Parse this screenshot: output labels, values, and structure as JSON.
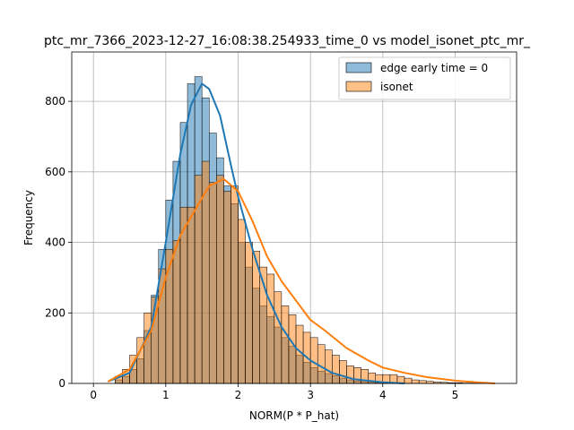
{
  "chart_data": {
    "type": "bar",
    "title": "ptc_mr_7366_2023-12-27_16:08:38.254933_time_0 vs model_isonet_ptc_mr_",
    "xlabel": "NORM(P * P_hat)",
    "ylabel": "Frequency",
    "xlim": [
      -0.3,
      5.85
    ],
    "ylim": [
      0,
      940
    ],
    "xticks": [
      0,
      1,
      2,
      3,
      4,
      5
    ],
    "yticks": [
      0,
      200,
      400,
      600,
      800
    ],
    "grid": true,
    "legend_position": "upper right",
    "bin_width": 0.1,
    "series": [
      {
        "name": "edge early time = 0",
        "color": "#1f77b4",
        "bin_starts": [
          0.3,
          0.4,
          0.5,
          0.6,
          0.7,
          0.8,
          0.9,
          1.0,
          1.1,
          1.2,
          1.3,
          1.4,
          1.5,
          1.6,
          1.7,
          1.8,
          1.9,
          2.0,
          2.1,
          2.2,
          2.3,
          2.4,
          2.5,
          2.6,
          2.7,
          2.8,
          2.9,
          3.0,
          3.1,
          3.2,
          3.3,
          3.4,
          3.5,
          3.6,
          3.7,
          3.8,
          3.9,
          4.0
        ],
        "values": [
          10,
          20,
          40,
          70,
          150,
          250,
          380,
          520,
          630,
          740,
          850,
          870,
          810,
          710,
          640,
          560,
          510,
          400,
          330,
          270,
          220,
          190,
          160,
          130,
          105,
          80,
          60,
          45,
          35,
          28,
          22,
          15,
          10,
          7,
          5,
          3,
          2,
          1
        ],
        "kde_x": [
          0.2,
          0.5,
          0.8,
          1.0,
          1.2,
          1.35,
          1.5,
          1.6,
          1.75,
          1.9,
          2.0,
          2.2,
          2.4,
          2.6,
          2.8,
          3.0,
          3.3,
          3.6,
          4.0,
          4.3
        ],
        "kde_y": [
          5,
          30,
          160,
          400,
          650,
          790,
          850,
          835,
          760,
          620,
          530,
          380,
          250,
          160,
          100,
          65,
          30,
          12,
          3,
          0
        ]
      },
      {
        "name": "isonet",
        "color": "#ff7f0e",
        "bin_starts": [
          0.3,
          0.4,
          0.5,
          0.6,
          0.7,
          0.8,
          0.9,
          1.0,
          1.1,
          1.2,
          1.3,
          1.4,
          1.5,
          1.6,
          1.7,
          1.8,
          1.9,
          2.0,
          2.1,
          2.2,
          2.3,
          2.4,
          2.5,
          2.6,
          2.7,
          2.8,
          2.9,
          3.0,
          3.1,
          3.2,
          3.3,
          3.4,
          3.5,
          3.6,
          3.7,
          3.8,
          3.9,
          4.0,
          4.1,
          4.2,
          4.3,
          4.4,
          4.5,
          4.6,
          4.7,
          4.8,
          4.9,
          5.0,
          5.1,
          5.2,
          5.3,
          5.4
        ],
        "values": [
          20,
          40,
          80,
          130,
          200,
          245,
          325,
          380,
          405,
          500,
          500,
          590,
          630,
          570,
          590,
          545,
          560,
          465,
          400,
          375,
          330,
          310,
          260,
          220,
          195,
          165,
          145,
          130,
          110,
          95,
          80,
          65,
          50,
          45,
          40,
          30,
          25,
          25,
          25,
          20,
          15,
          10,
          8,
          6,
          4,
          3,
          2,
          2,
          1,
          1,
          1,
          1
        ],
        "kde_x": [
          0.2,
          0.5,
          0.8,
          1.0,
          1.2,
          1.4,
          1.6,
          1.8,
          2.0,
          2.2,
          2.4,
          2.6,
          2.8,
          3.0,
          3.2,
          3.5,
          3.8,
          4.0,
          4.3,
          4.6,
          5.0,
          5.3,
          5.55
        ],
        "kde_y": [
          5,
          40,
          150,
          300,
          420,
          490,
          560,
          580,
          545,
          460,
          360,
          290,
          235,
          180,
          150,
          100,
          65,
          45,
          30,
          18,
          8,
          3,
          0
        ]
      }
    ]
  }
}
